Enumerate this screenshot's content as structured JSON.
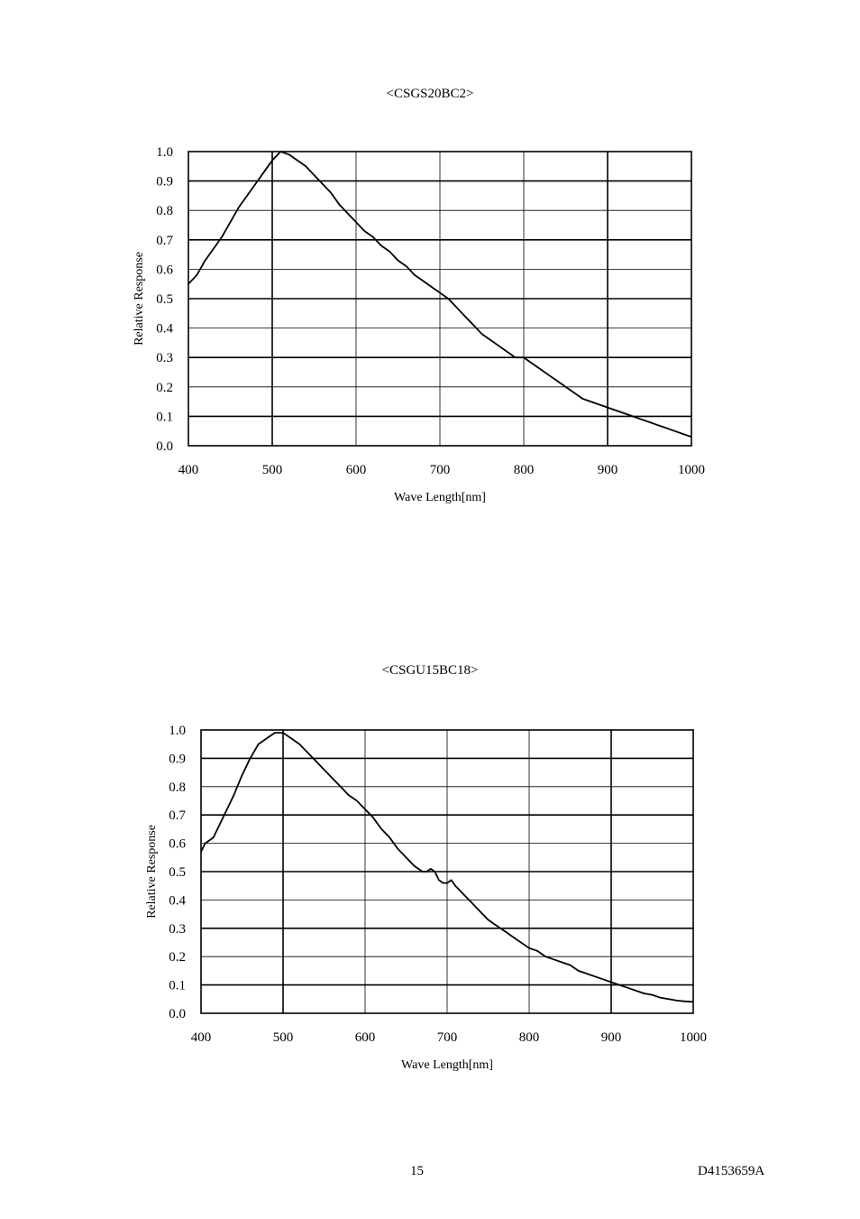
{
  "page": {
    "number": "15",
    "doc_id": "D4153659A"
  },
  "chart_data": [
    {
      "type": "line",
      "title": "<CSGS20BC2>",
      "xlabel": "Wave Length[nm]",
      "ylabel": "Relative Response",
      "xlim": [
        400,
        1000
      ],
      "ylim": [
        0,
        1.0
      ],
      "xticks": [
        "400",
        "500",
        "600",
        "700",
        "800",
        "900",
        "1000"
      ],
      "yticks": [
        "0.0",
        "0.1",
        "0.2",
        "0.3",
        "0.4",
        "0.5",
        "0.6",
        "0.7",
        "0.8",
        "0.9",
        "1.0"
      ],
      "grid": true,
      "series": [
        {
          "x": [
            400,
            410,
            420,
            430,
            440,
            450,
            460,
            470,
            480,
            490,
            500,
            510,
            520,
            530,
            540,
            550,
            560,
            570,
            580,
            590,
            600,
            610,
            620,
            630,
            640,
            650,
            660,
            670,
            680,
            690,
            700,
            710,
            720,
            730,
            740,
            750,
            760,
            770,
            780,
            790,
            800,
            810,
            820,
            830,
            840,
            850,
            860,
            870,
            880,
            890,
            900,
            910,
            920,
            930,
            940,
            950,
            960,
            970,
            980,
            990,
            1000
          ],
          "y": [
            0.55,
            0.58,
            0.63,
            0.67,
            0.71,
            0.76,
            0.81,
            0.85,
            0.89,
            0.93,
            0.97,
            1.0,
            0.99,
            0.97,
            0.95,
            0.92,
            0.89,
            0.86,
            0.82,
            0.79,
            0.76,
            0.73,
            0.71,
            0.68,
            0.66,
            0.63,
            0.61,
            0.58,
            0.56,
            0.54,
            0.52,
            0.5,
            0.47,
            0.44,
            0.41,
            0.38,
            0.36,
            0.34,
            0.32,
            0.3,
            0.3,
            0.28,
            0.26,
            0.24,
            0.22,
            0.2,
            0.18,
            0.16,
            0.15,
            0.14,
            0.13,
            0.12,
            0.11,
            0.1,
            0.09,
            0.08,
            0.07,
            0.06,
            0.05,
            0.04,
            0.03
          ]
        }
      ]
    },
    {
      "type": "line",
      "title": "<CSGU15BC18>",
      "xlabel": "Wave Length[nm]",
      "ylabel": "Relative Response",
      "xlim": [
        400,
        1000
      ],
      "ylim": [
        0,
        1.0
      ],
      "xticks": [
        "400",
        "500",
        "600",
        "700",
        "800",
        "900",
        "1000"
      ],
      "yticks": [
        "0.0",
        "0.1",
        "0.2",
        "0.3",
        "0.4",
        "0.5",
        "0.6",
        "0.7",
        "0.8",
        "0.9",
        "1.0"
      ],
      "grid": true,
      "series": [
        {
          "x": [
            400,
            405,
            410,
            415,
            420,
            430,
            440,
            450,
            460,
            470,
            480,
            490,
            500,
            510,
            520,
            530,
            540,
            550,
            560,
            570,
            580,
            590,
            600,
            610,
            620,
            630,
            640,
            650,
            660,
            670,
            675,
            680,
            685,
            690,
            695,
            700,
            705,
            710,
            720,
            730,
            740,
            750,
            760,
            770,
            780,
            790,
            800,
            810,
            820,
            830,
            840,
            850,
            860,
            870,
            880,
            890,
            900,
            910,
            920,
            930,
            940,
            950,
            960,
            970,
            980,
            990,
            1000
          ],
          "y": [
            0.57,
            0.6,
            0.61,
            0.62,
            0.65,
            0.71,
            0.77,
            0.84,
            0.9,
            0.95,
            0.97,
            0.99,
            0.99,
            0.97,
            0.95,
            0.92,
            0.89,
            0.86,
            0.83,
            0.8,
            0.77,
            0.75,
            0.72,
            0.69,
            0.65,
            0.62,
            0.58,
            0.55,
            0.52,
            0.5,
            0.5,
            0.51,
            0.5,
            0.47,
            0.46,
            0.46,
            0.47,
            0.45,
            0.42,
            0.39,
            0.36,
            0.33,
            0.31,
            0.29,
            0.27,
            0.25,
            0.23,
            0.22,
            0.2,
            0.19,
            0.18,
            0.17,
            0.15,
            0.14,
            0.13,
            0.12,
            0.11,
            0.1,
            0.09,
            0.08,
            0.07,
            0.065,
            0.055,
            0.05,
            0.045,
            0.042,
            0.04
          ]
        }
      ]
    }
  ]
}
